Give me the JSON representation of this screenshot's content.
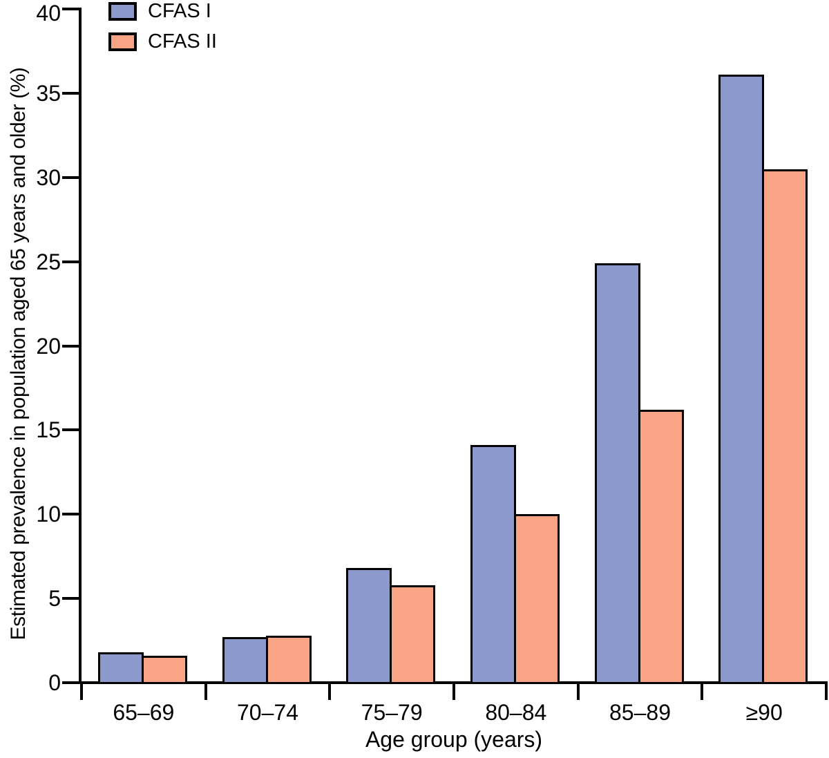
{
  "chart_data": {
    "type": "bar",
    "categories": [
      "65–69",
      "70–74",
      "75–79",
      "80–84",
      "85–89",
      "≥90"
    ],
    "series": [
      {
        "name": "CFAS I",
        "color": "#8b99cc",
        "values": [
          1.8,
          2.7,
          6.8,
          14.1,
          24.9,
          36.1
        ]
      },
      {
        "name": "CFAS II",
        "color": "#f9a585",
        "values": [
          1.6,
          2.8,
          5.8,
          10.0,
          16.2,
          30.5
        ]
      }
    ],
    "xlabel": "Age group (years)",
    "ylabel": "Estimated prevalence in population aged 65 years and older (%)",
    "ylim": [
      0,
      40
    ],
    "yticks": [
      0,
      5,
      10,
      15,
      20,
      25,
      30,
      35,
      40
    ],
    "grid": false,
    "legend_position": "top-left",
    "axis_color": "#000000",
    "bar_border_color": "#000000"
  }
}
